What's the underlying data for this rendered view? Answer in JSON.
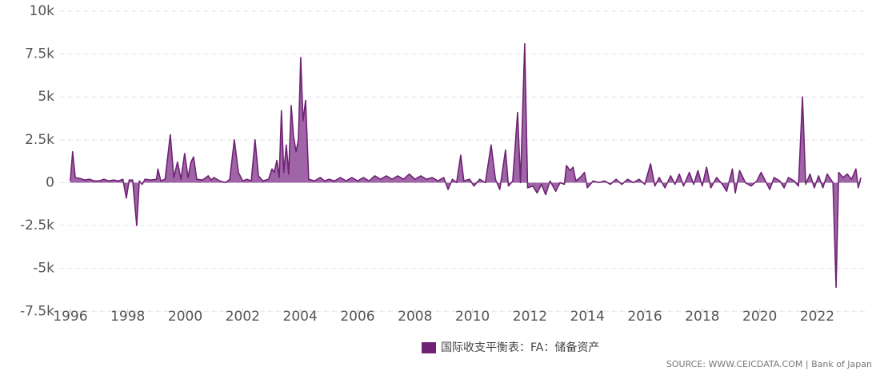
{
  "chart_data": {
    "type": "area",
    "x": [
      1996.0,
      1996.08,
      1996.17,
      1996.33,
      1996.5,
      1996.67,
      1996.83,
      1997.0,
      1997.17,
      1997.33,
      1997.5,
      1997.67,
      1997.83,
      1997.95,
      1998.05,
      1998.17,
      1998.31,
      1998.4,
      1998.5,
      1998.6,
      1998.8,
      1999.0,
      1999.05,
      1999.15,
      1999.3,
      1999.48,
      1999.6,
      1999.73,
      1999.85,
      1999.98,
      2000.1,
      2000.2,
      2000.29,
      2000.4,
      2000.6,
      2000.8,
      2000.9,
      2001.0,
      2001.2,
      2001.4,
      2001.55,
      2001.71,
      2001.85,
      2002.0,
      2002.15,
      2002.3,
      2002.43,
      2002.55,
      2002.7,
      2002.9,
      2003.02,
      2003.1,
      2003.19,
      2003.27,
      2003.35,
      2003.43,
      2003.52,
      2003.6,
      2003.69,
      2003.77,
      2003.86,
      2003.94,
      2004.02,
      2004.1,
      2004.19,
      2004.3,
      2004.5,
      2004.7,
      2004.85,
      2005.0,
      2005.2,
      2005.4,
      2005.6,
      2005.8,
      2006.0,
      2006.2,
      2006.4,
      2006.6,
      2006.8,
      2007.0,
      2007.2,
      2007.4,
      2007.6,
      2007.8,
      2008.0,
      2008.2,
      2008.4,
      2008.6,
      2008.8,
      2009.0,
      2009.15,
      2009.3,
      2009.45,
      2009.59,
      2009.7,
      2009.9,
      2010.05,
      2010.25,
      2010.45,
      2010.65,
      2010.8,
      2010.95,
      2011.15,
      2011.25,
      2011.4,
      2011.57,
      2011.67,
      2011.82,
      2011.92,
      2012.1,
      2012.25,
      2012.4,
      2012.55,
      2012.7,
      2012.9,
      2013.05,
      2013.2,
      2013.27,
      2013.4,
      2013.5,
      2013.6,
      2013.75,
      2013.9,
      2014.0,
      2014.2,
      2014.4,
      2014.6,
      2014.8,
      2015.0,
      2015.2,
      2015.4,
      2015.6,
      2015.8,
      2016.0,
      2016.2,
      2016.35,
      2016.5,
      2016.7,
      2016.9,
      2017.05,
      2017.2,
      2017.35,
      2017.55,
      2017.7,
      2017.85,
      2018.0,
      2018.15,
      2018.3,
      2018.5,
      2018.7,
      2018.85,
      2019.05,
      2019.15,
      2019.3,
      2019.5,
      2019.7,
      2019.9,
      2020.05,
      2020.2,
      2020.35,
      2020.5,
      2020.7,
      2020.85,
      2021.0,
      2021.2,
      2021.35,
      2021.49,
      2021.6,
      2021.75,
      2021.9,
      2022.05,
      2022.2,
      2022.35,
      2022.55,
      2022.66,
      2022.75,
      2022.9,
      2023.05,
      2023.2,
      2023.35,
      2023.43,
      2023.52
    ],
    "series": [
      {
        "name": "国际收支平衡表：FA：储备资产",
        "color": "#6f2274",
        "fill": "#8e4a98",
        "values": [
          100,
          1800,
          300,
          250,
          150,
          200,
          100,
          100,
          200,
          100,
          150,
          100,
          200,
          -900,
          150,
          150,
          -2500,
          100,
          -100,
          200,
          150,
          200,
          800,
          100,
          200,
          2800,
          300,
          1200,
          200,
          1700,
          300,
          1200,
          1500,
          200,
          150,
          400,
          150,
          300,
          100,
          0,
          200,
          2500,
          600,
          100,
          200,
          100,
          2500,
          400,
          100,
          200,
          800,
          600,
          1300,
          300,
          4200,
          600,
          2200,
          500,
          4500,
          2700,
          1800,
          2500,
          7300,
          3600,
          4800,
          200,
          100,
          300,
          100,
          200,
          100,
          300,
          100,
          300,
          100,
          300,
          100,
          400,
          200,
          400,
          200,
          400,
          200,
          500,
          200,
          400,
          200,
          300,
          100,
          300,
          -400,
          200,
          0,
          1600,
          100,
          200,
          -200,
          200,
          0,
          2200,
          200,
          -400,
          1900,
          -200,
          100,
          4100,
          0,
          8100,
          -300,
          -200,
          -600,
          -100,
          -700,
          100,
          -500,
          0,
          -100,
          1000,
          700,
          900,
          100,
          300,
          600,
          -300,
          100,
          0,
          100,
          -100,
          200,
          -100,
          200,
          0,
          200,
          -100,
          1100,
          -200,
          300,
          -300,
          400,
          -100,
          500,
          -200,
          600,
          -100,
          700,
          -200,
          900,
          -300,
          300,
          -100,
          -500,
          800,
          -600,
          700,
          0,
          -200,
          100,
          600,
          100,
          -400,
          300,
          100,
          -300,
          300,
          100,
          -200,
          5000,
          -100,
          500,
          -300,
          400,
          -300,
          500,
          0,
          -6100,
          600,
          300,
          500,
          200,
          800,
          -300,
          300
        ]
      }
    ],
    "xlim": [
      1995.64,
      2023.77
    ],
    "xticks": [
      1996,
      1998,
      2000,
      2002,
      2004,
      2006,
      2008,
      2010,
      2012,
      2014,
      2016,
      2018,
      2020,
      2022
    ],
    "ylim": [
      -8000,
      10000
    ],
    "yticks": [
      {
        "value": 10000,
        "label": "10k"
      },
      {
        "value": 7500,
        "label": "7.5k"
      },
      {
        "value": 5000,
        "label": "5k"
      },
      {
        "value": 2500,
        "label": "2.5k"
      },
      0,
      {
        "value": -2500,
        "label": "-2.5k"
      },
      {
        "value": -5000,
        "label": "-5k"
      },
      {
        "value": -7500,
        "label": "-7.5k"
      }
    ],
    "grid": true,
    "legend": "bottom",
    "source": "SOURCE: WWW.CEICDATA.COM | Bank of Japan"
  }
}
